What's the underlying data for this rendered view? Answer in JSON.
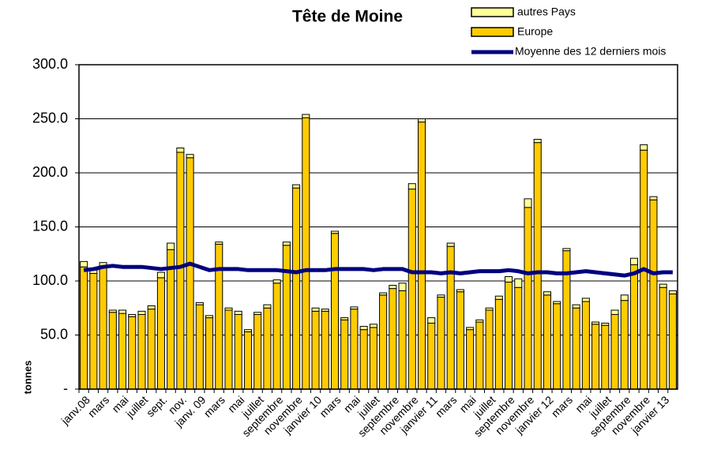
{
  "chart_data": {
    "type": "bar",
    "stacked": true,
    "title": "Tête de Moine",
    "y_label": "tonnes",
    "categories": [
      "janv.08",
      null,
      "mars",
      null,
      "mai",
      null,
      "juillet",
      null,
      "sept.",
      null,
      "nov.",
      null,
      "janv. 09",
      null,
      "mars",
      null,
      "mai",
      null,
      "juillet",
      null,
      "septembre",
      null,
      "novembre",
      null,
      "janvier 10",
      null,
      "mars",
      null,
      "mai",
      null,
      "juillet",
      null,
      "septembre",
      null,
      "novembre",
      null,
      "janvier 11",
      null,
      "mars",
      null,
      "mai",
      null,
      "juillet",
      null,
      "septembre",
      null,
      "novembre",
      null,
      "janvier 12",
      null,
      "mars",
      null,
      "mai",
      null,
      "juillet",
      null,
      "septembre",
      null,
      "novembre",
      null,
      "janvier 13",
      null
    ],
    "series": [
      {
        "name": "autres Pays",
        "color": "#ffff99",
        "values": [
          5,
          3,
          3,
          2,
          3,
          2,
          3,
          3,
          5,
          6,
          4,
          3,
          2,
          2,
          2,
          2,
          3,
          2,
          2,
          3,
          3,
          3,
          3,
          3,
          3,
          2,
          2,
          2,
          2,
          3,
          3,
          2,
          3,
          7,
          5,
          3,
          5,
          2,
          3,
          2,
          2,
          2,
          2,
          3,
          5,
          8,
          8,
          3,
          3,
          2,
          2,
          3,
          3,
          2,
          2,
          4,
          5,
          6,
          5,
          3,
          3,
          3
        ]
      },
      {
        "name": "Europe",
        "color": "#ffcc00",
        "values": [
          113,
          107,
          114,
          71,
          70,
          67,
          69,
          74,
          103,
          129,
          219,
          214,
          78,
          66,
          134,
          73,
          69,
          53,
          69,
          75,
          98,
          133,
          186,
          251,
          72,
          72,
          144,
          64,
          74,
          55,
          57,
          87,
          93,
          91,
          185,
          247,
          61,
          85,
          132,
          90,
          55,
          62,
          73,
          83,
          99,
          94,
          168,
          228,
          87,
          79,
          128,
          75,
          81,
          60,
          59,
          69,
          82,
          115,
          221,
          175,
          94,
          88
        ]
      },
      {
        "name": "Moyenne des 12 derniers mois",
        "type": "line",
        "color": "#000080",
        "values": [
          110,
          111,
          113,
          114,
          113,
          113,
          113,
          112,
          111,
          112,
          113,
          116,
          113,
          110,
          111,
          111,
          111,
          110,
          110,
          110,
          110,
          109,
          108,
          110,
          110,
          110,
          111,
          111,
          111,
          111,
          110,
          111,
          111,
          111,
          108,
          108,
          108,
          107,
          108,
          107,
          108,
          109,
          109,
          109,
          110,
          109,
          107,
          108,
          108,
          107,
          107,
          108,
          109,
          108,
          107,
          106,
          105,
          107,
          111,
          107,
          108,
          108
        ]
      }
    ],
    "ylim": [
      0,
      300
    ],
    "yticks": [
      {
        "value": 0,
        "label": "-"
      },
      {
        "value": 50,
        "label": "50.0"
      },
      {
        "value": 100,
        "label": "100.0"
      },
      {
        "value": 150,
        "label": "150.0"
      },
      {
        "value": 200,
        "label": "200.0"
      },
      {
        "value": 250,
        "label": "250.0"
      },
      {
        "value": 300,
        "label": "300.0"
      }
    ],
    "grid": true,
    "legend": "top-right"
  }
}
